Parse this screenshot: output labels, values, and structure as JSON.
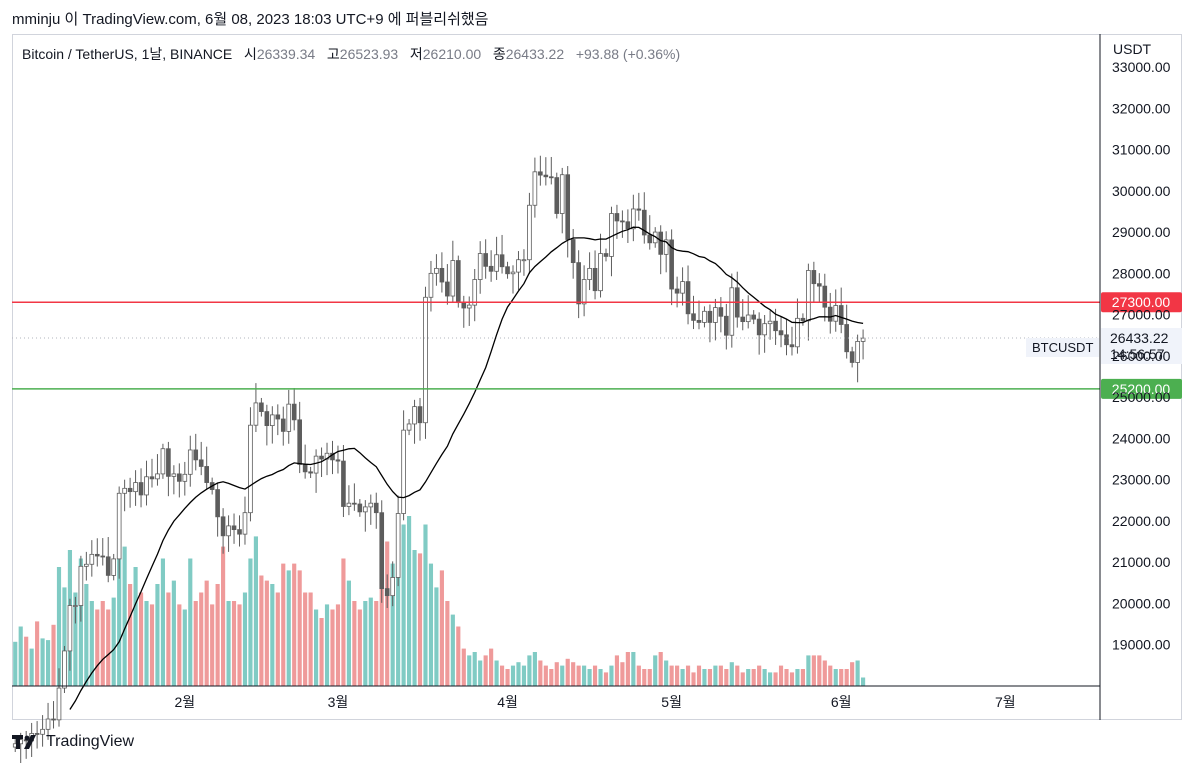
{
  "header": {
    "text": "mminju 이 TradingView.com, 6월 08, 2023 18:03 UTC+9 에 퍼블리쉬했음"
  },
  "legend": {
    "symbol": "Bitcoin / TetherUS, 1날, BINANCE",
    "open_label": "시",
    "open": "26339.34",
    "high_label": "고",
    "high": "26523.93",
    "low_label": "저",
    "low": "26210.00",
    "close_label": "종",
    "close": "26433.22",
    "change": "+93.88 (+0.36%)"
  },
  "price_axis": {
    "currency": "USDT"
  },
  "price_tag": {
    "symbol": "BTCUSDT",
    "value": "26433.22",
    "countdown": "14:56:57"
  },
  "footer": {
    "brand": "TradingView"
  },
  "colors": {
    "up_candle": "#ffffff",
    "down_candle": "#5d5d5d",
    "wick": "#5d5d5d",
    "sma": "#000000",
    "resistance": "#f23645",
    "support": "#4caf50",
    "vol_up": "#80cbc4",
    "vol_down": "#ef9a9a"
  },
  "chart_data": {
    "type": "candlestick",
    "interval": "1D",
    "y_range": [
      18000,
      33800
    ],
    "y_ticks": [
      19000,
      20000,
      21000,
      22000,
      23000,
      24000,
      25000,
      26000,
      27000,
      28000,
      29000,
      30000,
      31000,
      32000,
      33000
    ],
    "y_tick_labels": [
      "19000.00",
      "20000.00",
      "21000.00",
      "22000.00",
      "23000.00",
      "24000.00",
      "25000.00",
      "26000.00",
      "27000.00",
      "28000.00",
      "29000.00",
      "30000.00",
      "31000.00",
      "32000.00",
      "33000.00"
    ],
    "x_labels": [
      "2월",
      "3월",
      "4월",
      "5월",
      "6월",
      "7월"
    ],
    "x_label_dates": [
      "2023-02-01",
      "2023-03-01",
      "2023-04-01",
      "2023-05-01",
      "2023-06-01",
      "2023-07-01"
    ],
    "start_date": "2023-01-01",
    "end_date": "2023-06-08",
    "horizontal_lines": [
      {
        "price": 27300,
        "label": "27300.00",
        "color": "#f23645"
      },
      {
        "price": 25200,
        "label": "25200.00",
        "color": "#4caf50"
      }
    ],
    "last_price": 26433.22,
    "closes": [
      16600,
      16700,
      16670,
      16850,
      16830,
      16950,
      17200,
      17180,
      17950,
      18850,
      19950,
      19950,
      20900,
      20950,
      21190,
      21150,
      21130,
      20680,
      21080,
      22670,
      22790,
      22710,
      22930,
      22630,
      23070,
      23020,
      23140,
      23750,
      23080,
      23140,
      22960,
      23130,
      23720,
      23480,
      23320,
      22930,
      22760,
      22100,
      21640,
      21880,
      21790,
      21680,
      22200,
      24320,
      24860,
      24650,
      24310,
      24570,
      24470,
      24170,
      24830,
      24450,
      23370,
      23190,
      23160,
      23570,
      23500,
      23640,
      23480,
      23450,
      22350,
      22430,
      22410,
      22220,
      22340,
      22430,
      22200,
      20360,
      20190,
      20630,
      22180,
      24200,
      24350,
      24770,
      24380,
      27420,
      28000,
      28120,
      27790,
      27450,
      28310,
      27290,
      27160,
      27230,
      27850,
      28480,
      28170,
      28050,
      28450,
      28160,
      27990,
      28030,
      28330,
      28330,
      29650,
      30460,
      30380,
      30340,
      30320,
      29450,
      30390,
      28820,
      28260,
      27260,
      27850,
      28120,
      27580,
      28480,
      28410,
      29450,
      29270,
      29250,
      29080,
      29560,
      29530,
      28930,
      28740,
      29000,
      28460,
      28810,
      27620,
      27520,
      27800,
      27020,
      26860,
      26810,
      27080,
      26810,
      27170,
      26960,
      26500,
      27650,
      26940,
      26830,
      26990,
      26890,
      26510,
      26780,
      26840,
      26610,
      26510,
      26270,
      26220,
      26910,
      26850,
      28070,
      27750,
      27690,
      27180,
      26840,
      27220,
      26760,
      26100,
      25840,
      26350,
      26430
    ],
    "sma_period": 20,
    "volumes_relative": [
      0.26,
      0.35,
      0.29,
      0.22,
      0.38,
      0.28,
      0.27,
      0.36,
      0.7,
      0.58,
      0.8,
      0.55,
      0.75,
      0.6,
      0.5,
      0.45,
      0.5,
      0.45,
      0.52,
      0.75,
      0.82,
      0.6,
      0.7,
      0.55,
      0.5,
      0.48,
      0.6,
      0.75,
      0.55,
      0.62,
      0.48,
      0.45,
      0.75,
      0.5,
      0.55,
      0.62,
      0.48,
      0.6,
      0.82,
      0.5,
      0.5,
      0.48,
      0.55,
      0.75,
      0.88,
      0.65,
      0.62,
      0.6,
      0.55,
      0.72,
      0.68,
      0.72,
      0.68,
      0.55,
      0.55,
      0.45,
      0.4,
      0.48,
      0.45,
      0.48,
      0.75,
      0.62,
      0.5,
      0.45,
      0.5,
      0.52,
      0.5,
      0.85,
      0.85,
      0.72,
      0.9,
      0.95,
      1.0,
      0.8,
      0.78,
      0.95,
      0.72,
      0.58,
      0.68,
      0.5,
      0.42,
      0.35,
      0.22,
      0.18,
      0.2,
      0.15,
      0.18,
      0.22,
      0.15,
      0.12,
      0.1,
      0.12,
      0.14,
      0.12,
      0.18,
      0.2,
      0.15,
      0.12,
      0.1,
      0.14,
      0.12,
      0.16,
      0.14,
      0.12,
      0.12,
      0.1,
      0.12,
      0.1,
      0.08,
      0.12,
      0.18,
      0.14,
      0.2,
      0.2,
      0.12,
      0.1,
      0.1,
      0.18,
      0.2,
      0.15,
      0.12,
      0.12,
      0.1,
      0.12,
      0.08,
      0.12,
      0.1,
      0.1,
      0.12,
      0.12,
      0.1,
      0.14,
      0.12,
      0.08,
      0.1,
      0.1,
      0.12,
      0.1,
      0.08,
      0.08,
      0.12,
      0.1,
      0.08,
      0.1,
      0.1,
      0.18,
      0.18,
      0.18,
      0.15,
      0.12,
      0.1,
      0.1,
      0.1,
      0.14,
      0.15,
      0.05
    ]
  }
}
